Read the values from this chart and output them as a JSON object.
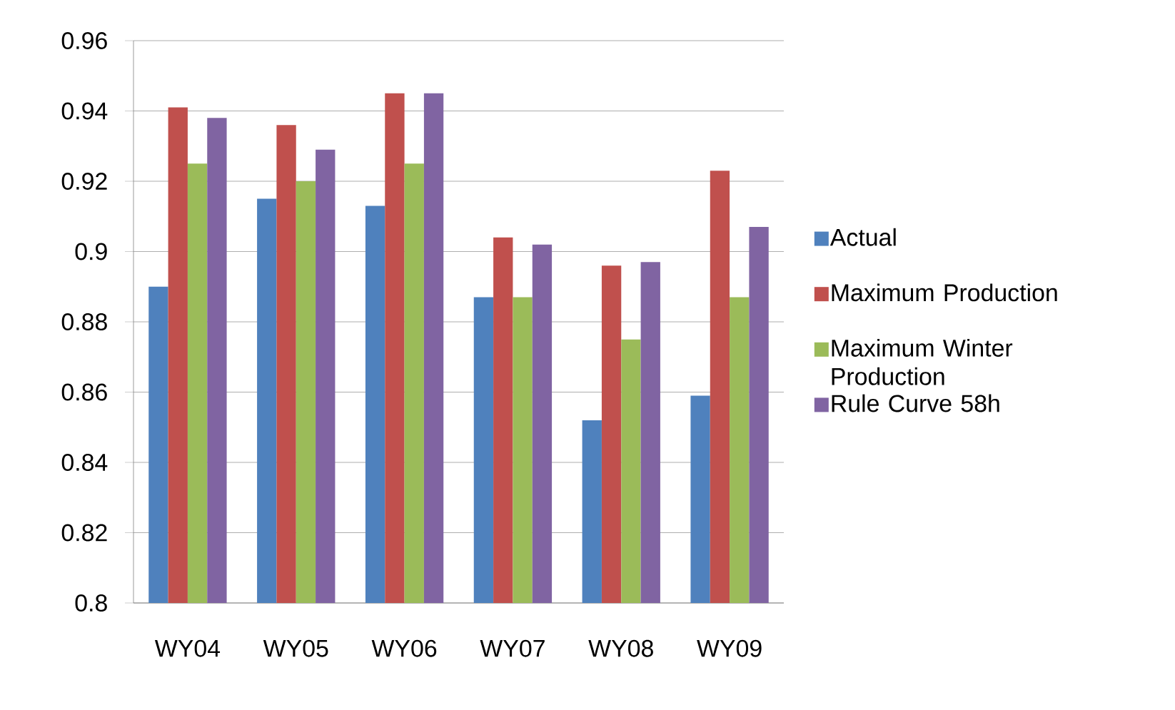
{
  "chart_data": {
    "type": "bar",
    "categories": [
      "WY04",
      "WY05",
      "WY06",
      "WY07",
      "WY08",
      "WY09"
    ],
    "series": [
      {
        "name": "Actual",
        "color": "#4f81bd",
        "values": [
          0.89,
          0.915,
          0.913,
          0.887,
          0.852,
          0.859
        ]
      },
      {
        "name": "Maximum Production",
        "color": "#c0504d",
        "values": [
          0.941,
          0.936,
          0.945,
          0.904,
          0.896,
          0.923
        ]
      },
      {
        "name": "Maximum Winter Production",
        "color": "#9bbb59",
        "values": [
          0.925,
          0.92,
          0.925,
          0.887,
          0.875,
          0.887
        ]
      },
      {
        "name": "Rule Curve 58h",
        "color": "#8064a2",
        "values": [
          0.938,
          0.929,
          0.945,
          0.902,
          0.897,
          0.907
        ]
      }
    ],
    "ylim": [
      0.8,
      0.96
    ],
    "yticks": [
      0.8,
      0.82,
      0.84,
      0.86,
      0.88,
      0.9,
      0.92,
      0.94,
      0.96
    ],
    "grid": "y",
    "legend": "right"
  }
}
